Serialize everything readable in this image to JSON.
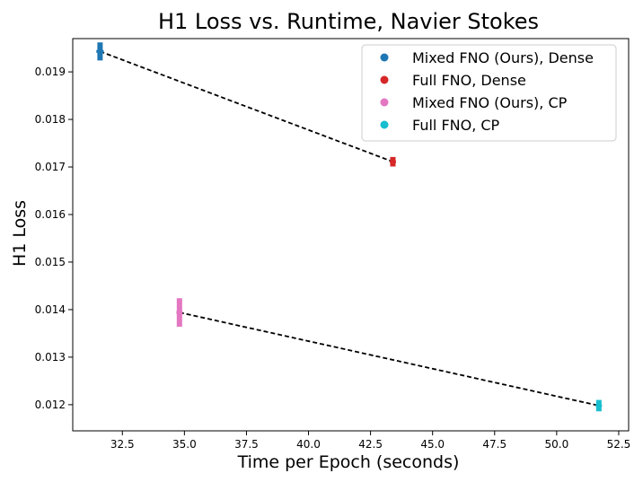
{
  "chart_data": {
    "type": "scatter",
    "title": "H1 Loss vs. Runtime, Navier Stokes",
    "xlabel": "Time per Epoch (seconds)",
    "ylabel": "H1 Loss",
    "xlim": [
      30.5,
      52.9
    ],
    "ylim": [
      0.01145,
      0.0197
    ],
    "xticks": [
      32.5,
      35.0,
      37.5,
      40.0,
      42.5,
      45.0,
      47.5,
      50.0,
      52.5
    ],
    "xtick_labels": [
      "32.5",
      "35.0",
      "37.5",
      "40.0",
      "42.5",
      "45.0",
      "47.5",
      "50.0",
      "52.5"
    ],
    "yticks": [
      0.012,
      0.013,
      0.014,
      0.015,
      0.016,
      0.017,
      0.018,
      0.019
    ],
    "ytick_labels": [
      "0.012",
      "0.013",
      "0.014",
      "0.015",
      "0.016",
      "0.017",
      "0.018",
      "0.019"
    ],
    "grid": false,
    "legend_position": "top-right",
    "series": [
      {
        "name": "Mixed FNO (Ours), Dense",
        "color": "#1f77b4",
        "x": 31.6,
        "y": 0.01943,
        "y_err": 0.00019,
        "x_err": 0.15
      },
      {
        "name": "Full FNO, Dense",
        "color": "#d62728",
        "x": 43.4,
        "y": 0.01711,
        "y_err": 0.0001,
        "x_err": 0.12
      },
      {
        "name": "Mixed FNO (Ours), CP",
        "color": "#e377c2",
        "x": 34.8,
        "y": 0.01394,
        "y_err": 0.0003,
        "x_err": 0.12
      },
      {
        "name": "Full FNO, CP",
        "color": "#17becf",
        "x": 51.7,
        "y": 0.01198,
        "y_err": 0.00012,
        "x_err": 0.12
      }
    ],
    "connector_lines": [
      {
        "from": 0,
        "to": 1,
        "style": "dashed",
        "color": "#000000"
      },
      {
        "from": 2,
        "to": 3,
        "style": "dashed",
        "color": "#000000"
      }
    ]
  }
}
